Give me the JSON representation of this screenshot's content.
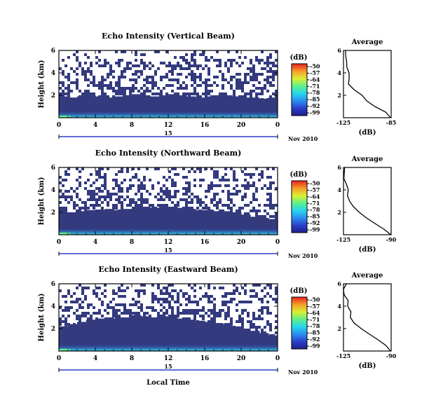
{
  "figure": {
    "date_label": "Nov 2010",
    "time_axis_label": "Local Time",
    "height_axis_label": "Height (km)",
    "day_label": "15",
    "colorbar_unit": "(dB)",
    "colorbar_ticks": [
      "-50",
      "-57",
      "-64",
      "-71",
      "-78",
      "-85",
      "-92",
      "-99"
    ],
    "avg_title": "Average",
    "avg_xlabel": "(dB)"
  },
  "chart_data": [
    {
      "type": "heatmap",
      "title": "Echo Intensity (Vertical Beam)",
      "xlabel": "",
      "ylabel": "Height (km)",
      "x_ticks": [
        "0",
        "4",
        "8",
        "12",
        "16",
        "20",
        "0"
      ],
      "y_ticks": [
        "6",
        "4",
        "2"
      ],
      "xlim": [
        0,
        24
      ],
      "ylim": [
        0,
        6
      ],
      "color_scale": [
        -99,
        -50
      ],
      "solid_top_km": [
        1.9,
        1.8,
        1.9,
        2.0,
        1.9,
        1.8,
        1.9,
        2.0,
        2.1,
        2.0,
        1.9,
        2.0,
        2.1,
        2.0,
        1.9,
        1.8,
        1.9,
        2.0,
        2.0,
        1.9,
        1.8,
        1.8,
        1.7,
        1.8
      ],
      "profile": {
        "heights_km": [
          0,
          0.5,
          1.0,
          1.5,
          2.0,
          2.5,
          3.0,
          3.5,
          4.0,
          4.5,
          5.0,
          5.5,
          6.0
        ],
        "db": [
          -86,
          -90,
          -99,
          -105,
          -110,
          -116,
          -120,
          -122,
          -122,
          -123,
          -124,
          -124,
          -124
        ],
        "xlim": [
          -125,
          -85
        ],
        "x_ticks": [
          "-125",
          "-85"
        ],
        "y_ticks": [
          "6",
          "4",
          "2"
        ]
      }
    },
    {
      "type": "heatmap",
      "title": "Echo Intensity (Northward Beam)",
      "xlabel": "",
      "ylabel": "Height (km)",
      "x_ticks": [
        "0",
        "4",
        "8",
        "12",
        "16",
        "20",
        "0"
      ],
      "y_ticks": [
        "6",
        "4",
        "2"
      ],
      "xlim": [
        0,
        24
      ],
      "ylim": [
        0,
        6
      ],
      "color_scale": [
        -99,
        -50
      ],
      "solid_top_km": [
        2.0,
        2.0,
        2.1,
        2.2,
        2.2,
        2.3,
        2.2,
        2.3,
        2.5,
        2.5,
        2.4,
        2.5,
        2.5,
        2.4,
        2.3,
        2.2,
        2.2,
        2.1,
        2.1,
        2.0,
        1.8,
        1.6,
        1.5,
        1.4
      ],
      "profile": {
        "heights_km": [
          0,
          0.5,
          1.0,
          1.5,
          2.0,
          2.5,
          3.0,
          3.5,
          4.0,
          4.5,
          5.0,
          5.5,
          6.0
        ],
        "db": [
          -90,
          -95,
          -102,
          -108,
          -113,
          -118,
          -121,
          -122,
          -123,
          -124,
          -124,
          -124,
          -124
        ],
        "xlim": [
          -125,
          -90
        ],
        "x_ticks": [
          "-125",
          "-90"
        ],
        "y_ticks": [
          "6",
          "4",
          "2"
        ]
      }
    },
    {
      "type": "heatmap",
      "title": "Echo Intensity (Eastward Beam)",
      "xlabel": "Local Time",
      "ylabel": "Height (km)",
      "x_ticks": [
        "0",
        "4",
        "8",
        "12",
        "16",
        "20",
        "0"
      ],
      "y_ticks": [
        "6",
        "4",
        "2"
      ],
      "xlim": [
        0,
        24
      ],
      "ylim": [
        0,
        6
      ],
      "color_scale": [
        -99,
        -50
      ],
      "solid_top_km": [
        2.2,
        2.4,
        2.6,
        2.8,
        2.9,
        3.0,
        2.9,
        3.0,
        3.2,
        3.1,
        3.0,
        3.1,
        3.0,
        2.9,
        2.8,
        2.7,
        2.6,
        2.5,
        2.4,
        2.2,
        2.0,
        1.8,
        1.6,
        1.4
      ],
      "profile": {
        "heights_km": [
          0,
          0.5,
          1.0,
          1.5,
          2.0,
          2.5,
          3.0,
          3.5,
          4.0,
          4.5,
          5.0,
          5.5,
          6.0
        ],
        "db": [
          -90,
          -94,
          -100,
          -106,
          -112,
          -117,
          -120,
          -121,
          -123,
          -123,
          -124,
          -124,
          -124
        ],
        "xlim": [
          -125,
          -90
        ],
        "x_ticks": [
          "-125",
          "-90"
        ],
        "y_ticks": [
          "6",
          "4",
          "2"
        ]
      }
    }
  ]
}
